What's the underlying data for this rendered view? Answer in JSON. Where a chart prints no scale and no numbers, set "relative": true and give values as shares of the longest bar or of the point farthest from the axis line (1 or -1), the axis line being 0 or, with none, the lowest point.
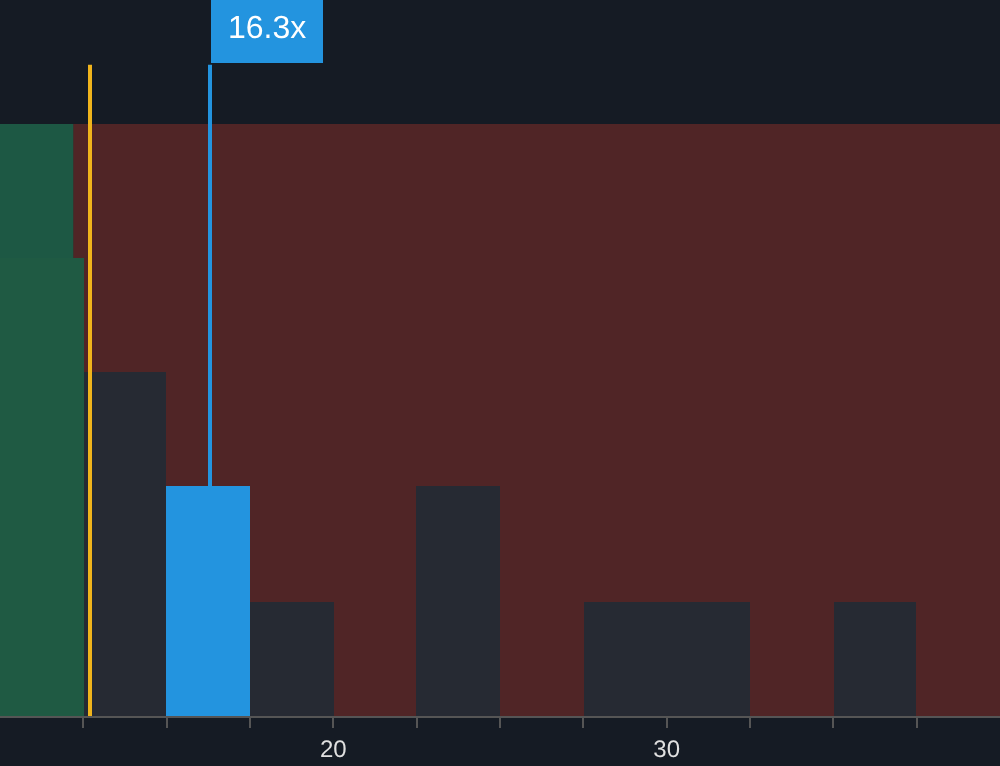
{
  "chart_data": {
    "type": "bar",
    "relative": true,
    "x": [
      11.25,
      13.75,
      16.25,
      18.75,
      21.25,
      23.75,
      26.25,
      28.75,
      31.25,
      33.75,
      36.25,
      38.75
    ],
    "values": [
      1,
      0.75,
      0.5,
      0.25,
      0,
      0.5,
      0,
      0.25,
      0.25,
      0,
      0.25,
      0
    ],
    "colors": [
      "#1f5a43",
      "#262a33",
      "#2394df",
      "#262a33",
      "#262a33",
      "#262a33",
      "#262a33",
      "#262a33",
      "#262a33",
      "#262a33",
      "#262a33",
      "#262a33"
    ],
    "xlim": [
      10,
      40
    ],
    "xticks": [
      {
        "value": 12.5,
        "label": null
      },
      {
        "value": 15,
        "label": null
      },
      {
        "value": 17.5,
        "label": null
      },
      20,
      {
        "value": 22.5,
        "label": null
      },
      {
        "value": 25,
        "label": null
      },
      {
        "value": 27.5,
        "label": null
      },
      30,
      {
        "value": 32.5,
        "label": null
      },
      {
        "value": 35,
        "label": null
      },
      {
        "value": 37.5,
        "label": null
      }
    ],
    "bands": [
      {
        "axis": "x",
        "from": 10,
        "to": 12.2,
        "label": null,
        "color": "#2ecc80"
      },
      {
        "axis": "x",
        "from": 12.2,
        "to": 40,
        "label": null,
        "color": "#c0392b"
      }
    ],
    "ref_lines": [
      {
        "axis": "x",
        "value": 12.7,
        "label": null,
        "color": "#f0b41c"
      },
      {
        "axis": "x",
        "value": 16.3,
        "label": "16.3x",
        "color": "#2394df"
      }
    ]
  }
}
